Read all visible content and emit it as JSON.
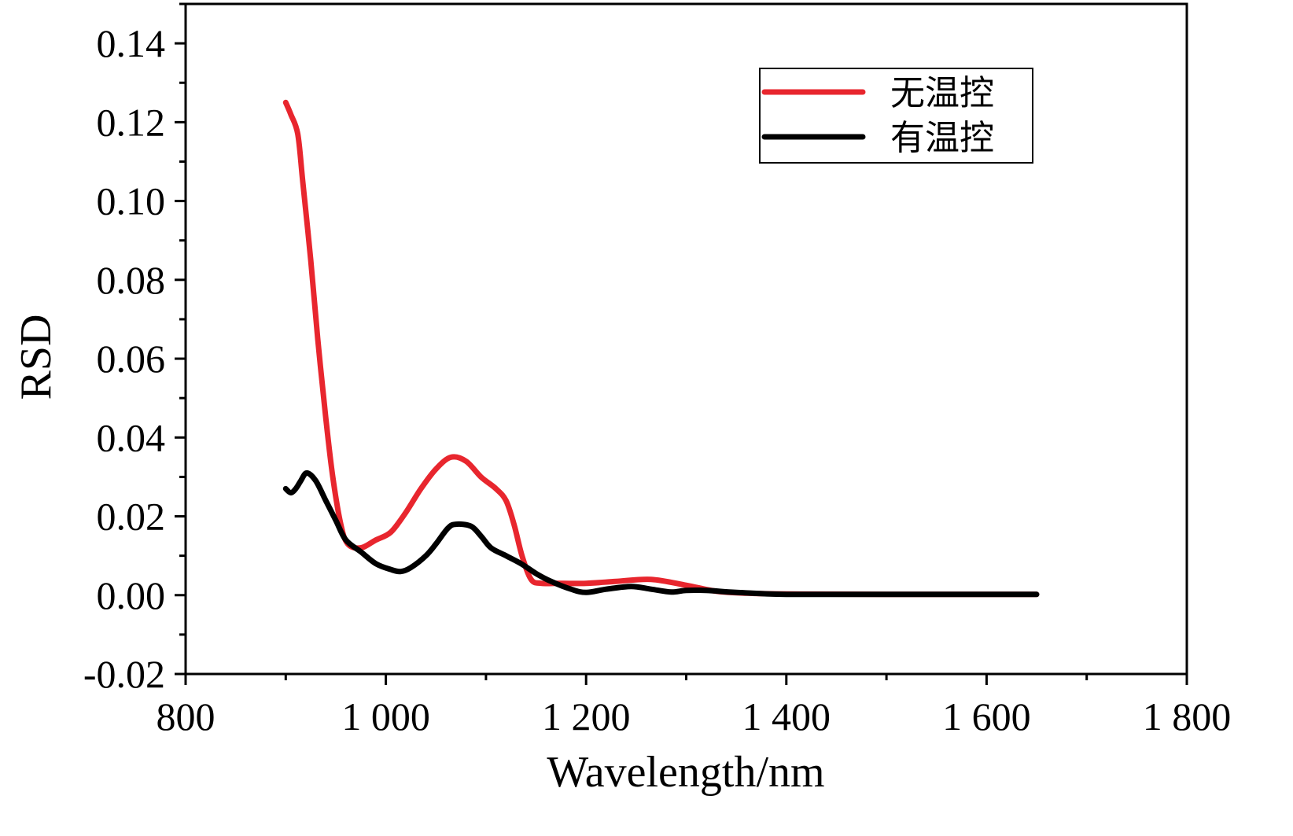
{
  "chart_data": {
    "type": "line",
    "xlabel": "Wavelength/nm",
    "ylabel": "RSD",
    "xlim": [
      800,
      1800
    ],
    "ylim": [
      -0.02,
      0.15
    ],
    "x_ticks": [
      800,
      1000,
      1200,
      1400,
      1600,
      1800
    ],
    "x_tick_labels": [
      "800",
      "1 000",
      "1 200",
      "1 400",
      "1 600",
      "1 800"
    ],
    "y_ticks": [
      -0.02,
      0.0,
      0.02,
      0.04,
      0.06,
      0.08,
      0.1,
      0.12,
      0.14
    ],
    "y_tick_labels": [
      "-0.02",
      "0.00",
      "0.02",
      "0.04",
      "0.06",
      "0.08",
      "0.10",
      "0.12",
      "0.14"
    ],
    "grid": false,
    "legend_position": "top-right",
    "series": [
      {
        "name": "无温控",
        "color": "#e8262e",
        "points": [
          [
            900,
            0.125
          ],
          [
            905,
            0.122
          ],
          [
            912,
            0.117
          ],
          [
            917,
            0.105
          ],
          [
            925,
            0.085
          ],
          [
            932,
            0.065
          ],
          [
            940,
            0.045
          ],
          [
            947,
            0.03
          ],
          [
            955,
            0.018
          ],
          [
            962,
            0.013
          ],
          [
            975,
            0.012
          ],
          [
            990,
            0.014
          ],
          [
            1005,
            0.016
          ],
          [
            1020,
            0.021
          ],
          [
            1035,
            0.027
          ],
          [
            1050,
            0.032
          ],
          [
            1065,
            0.035
          ],
          [
            1080,
            0.034
          ],
          [
            1095,
            0.03
          ],
          [
            1110,
            0.027
          ],
          [
            1120,
            0.024
          ],
          [
            1128,
            0.018
          ],
          [
            1136,
            0.01
          ],
          [
            1145,
            0.004
          ],
          [
            1155,
            0.003
          ],
          [
            1170,
            0.003
          ],
          [
            1200,
            0.003
          ],
          [
            1230,
            0.0035
          ],
          [
            1265,
            0.004
          ],
          [
            1300,
            0.0025
          ],
          [
            1330,
            0.001
          ],
          [
            1360,
            0.0005
          ],
          [
            1400,
            0.0003
          ],
          [
            1500,
            0.0002
          ],
          [
            1650,
            0.0002
          ]
        ]
      },
      {
        "name": "有温控",
        "color": "#000000",
        "points": [
          [
            900,
            0.027
          ],
          [
            905,
            0.026
          ],
          [
            910,
            0.027
          ],
          [
            915,
            0.029
          ],
          [
            921,
            0.031
          ],
          [
            930,
            0.029
          ],
          [
            940,
            0.024
          ],
          [
            950,
            0.019
          ],
          [
            960,
            0.014
          ],
          [
            975,
            0.011
          ],
          [
            990,
            0.008
          ],
          [
            1005,
            0.0065
          ],
          [
            1015,
            0.006
          ],
          [
            1025,
            0.007
          ],
          [
            1040,
            0.01
          ],
          [
            1050,
            0.013
          ],
          [
            1062,
            0.017
          ],
          [
            1070,
            0.018
          ],
          [
            1085,
            0.0175
          ],
          [
            1095,
            0.015
          ],
          [
            1105,
            0.012
          ],
          [
            1120,
            0.01
          ],
          [
            1135,
            0.008
          ],
          [
            1150,
            0.0055
          ],
          [
            1165,
            0.0035
          ],
          [
            1185,
            0.0015
          ],
          [
            1200,
            0.0007
          ],
          [
            1220,
            0.0015
          ],
          [
            1245,
            0.0022
          ],
          [
            1265,
            0.0015
          ],
          [
            1285,
            0.0008
          ],
          [
            1300,
            0.0012
          ],
          [
            1320,
            0.0012
          ],
          [
            1350,
            0.0007
          ],
          [
            1400,
            0.0002
          ],
          [
            1500,
            0.0002
          ],
          [
            1650,
            0.0002
          ]
        ]
      }
    ]
  }
}
